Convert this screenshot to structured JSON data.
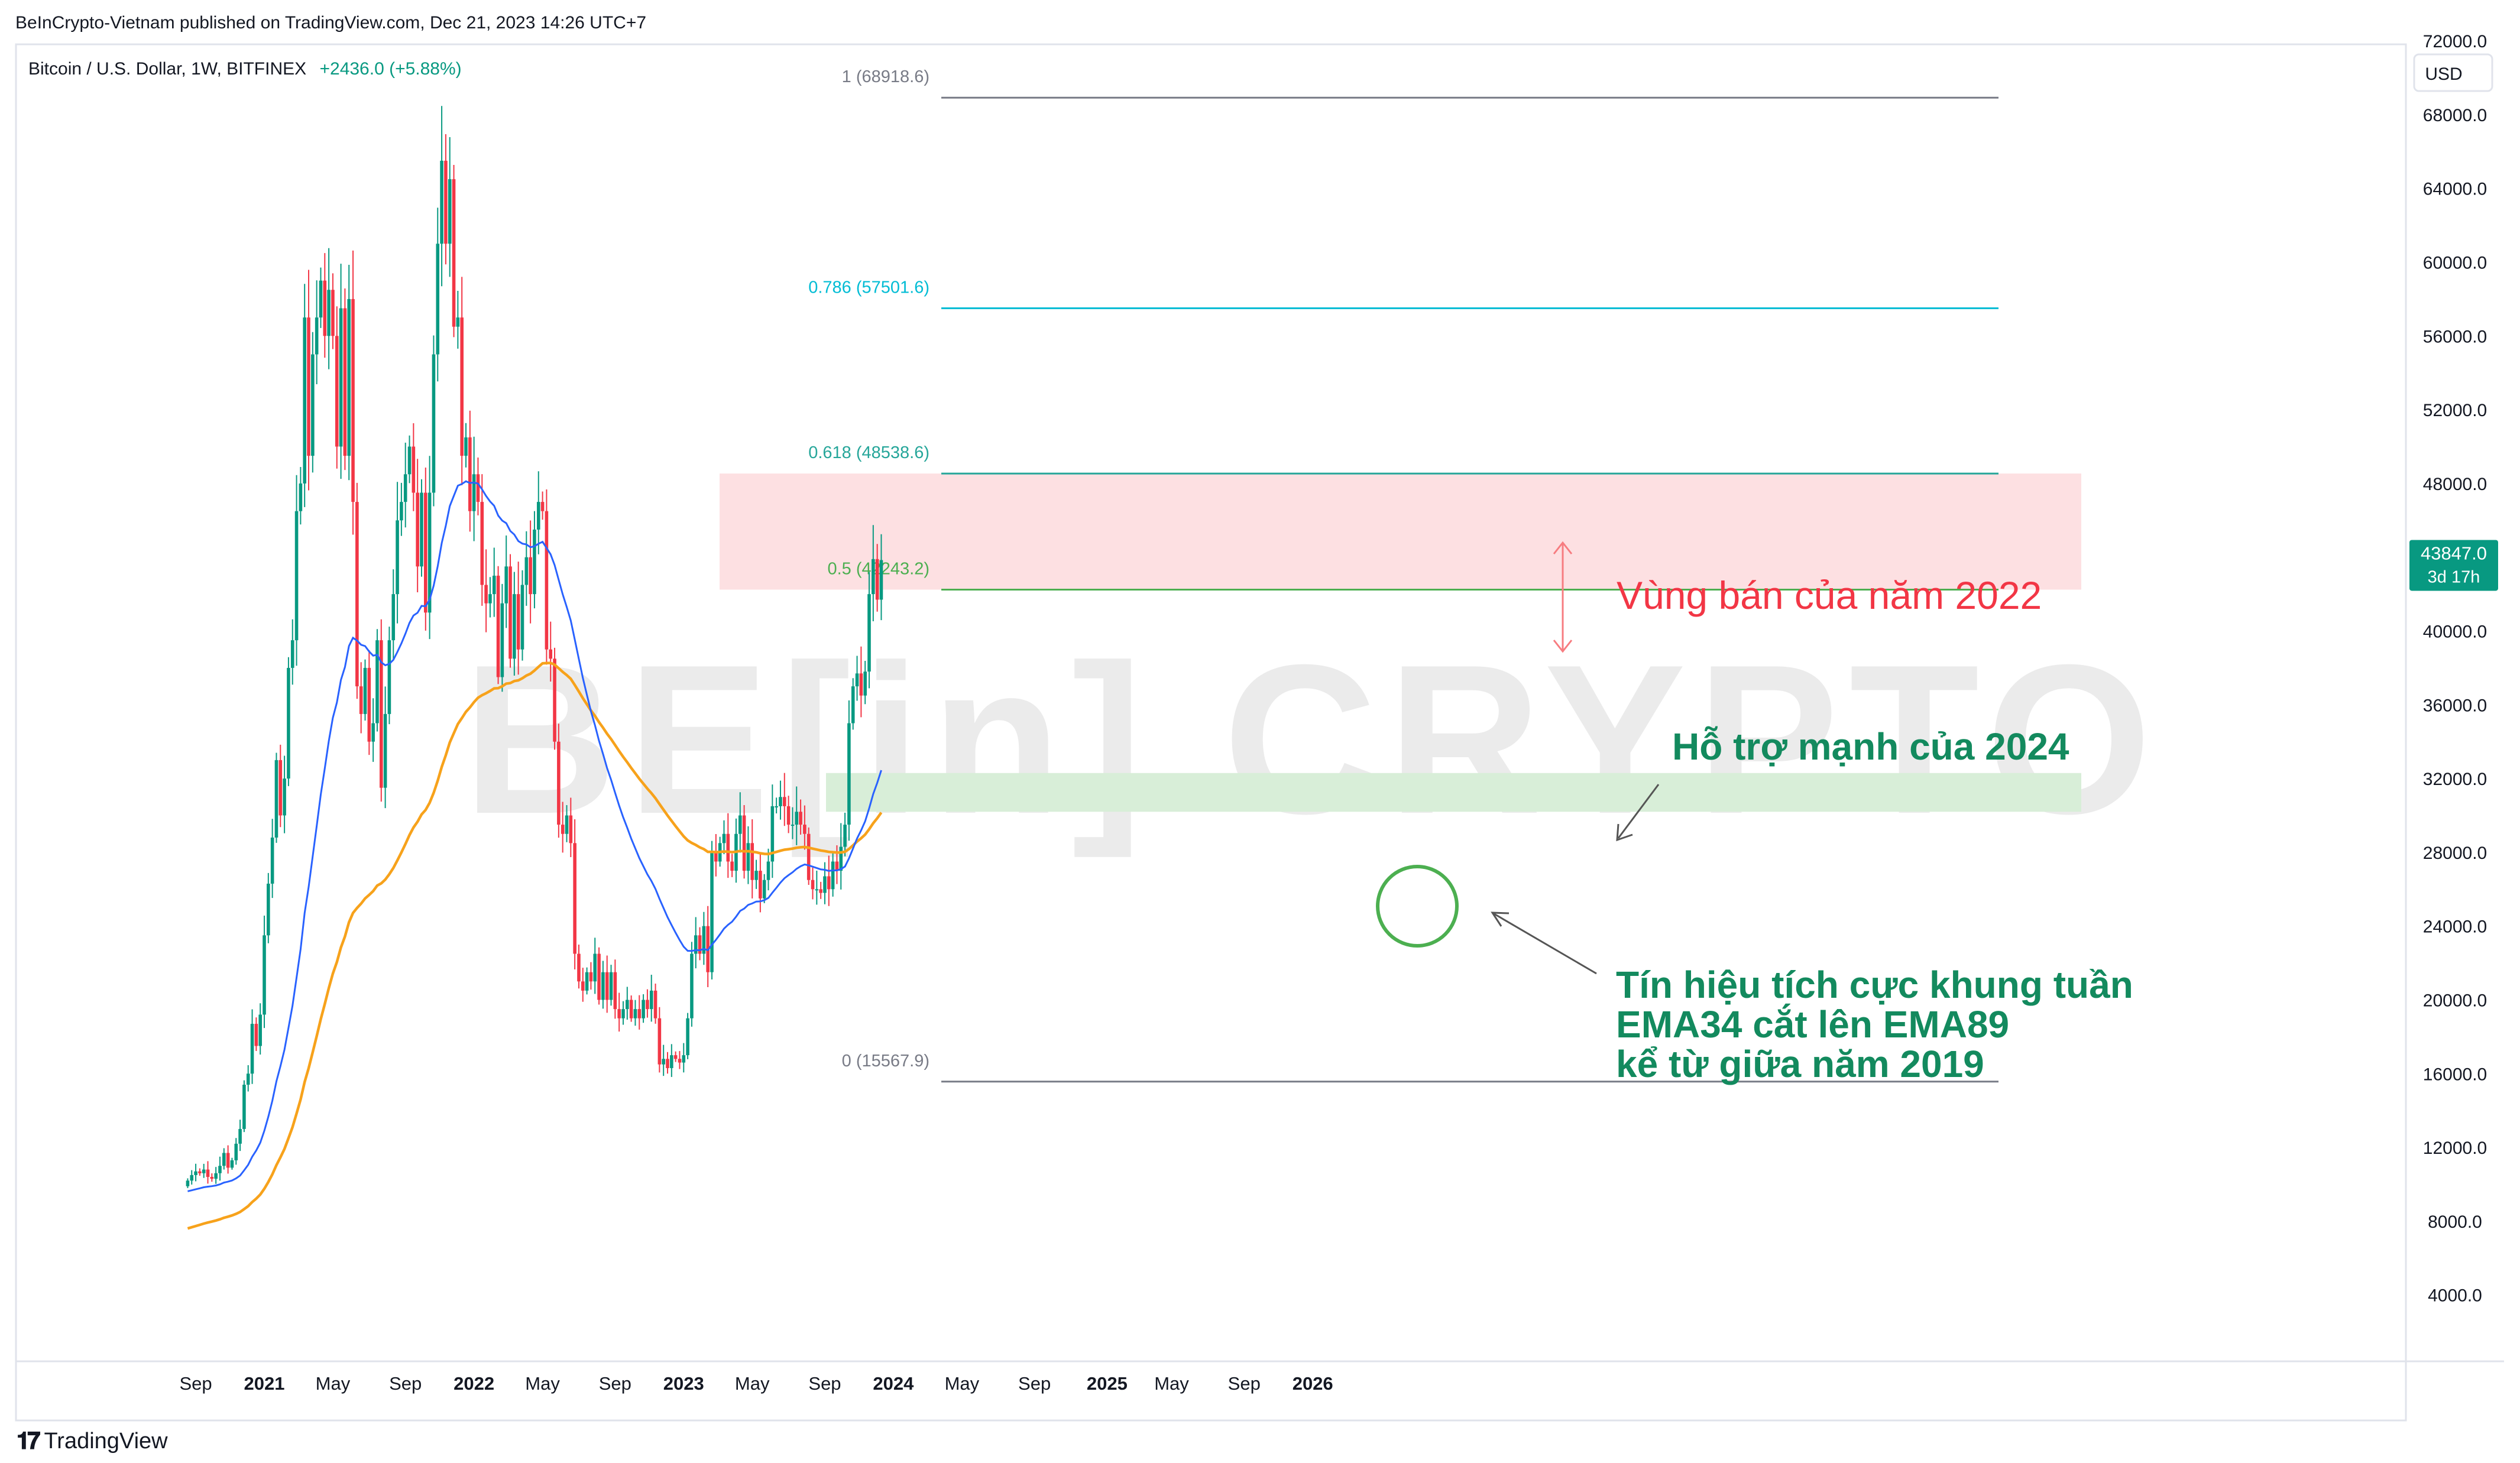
{
  "header": {
    "publisher_line": "BeInCrypto-Vietnam published on TradingView.com, Dec 21, 2023 14:26 UTC+7",
    "symbol_line": "Bitcoin / U.S. Dollar, 1W, BITFINEX",
    "change_text": "+2436.0 (+5.88%)"
  },
  "currency_label": "USD",
  "price_badge": {
    "price": "43847.0",
    "countdown": "3d 17h"
  },
  "watermark": "BE[in] CRYPTO",
  "footer": {
    "brand": "TradingView"
  },
  "colors": {
    "up": "#089981",
    "down": "#f23645",
    "ema34": "#2962ff",
    "ema89": "#f7a21b",
    "fib_gray": "#787b86",
    "fib_786": "#00bcd4",
    "fib_618": "#26a69a",
    "fib_05": "#4caf50",
    "sell_zone": "#fde0e2",
    "support_zone": "#d8eed8",
    "annot_red": "#f23645",
    "annot_green": "#138a5e"
  },
  "chart_data": {
    "type": "candlestick",
    "timeframe": "1W",
    "symbol": "BTCUSD",
    "y_axis": {
      "ylim": [
        2000,
        76000
      ],
      "ticks": [
        4000,
        8000,
        12000,
        16000,
        20000,
        24000,
        28000,
        32000,
        36000,
        40000,
        44000,
        48000,
        52000,
        56000,
        60000,
        64000,
        68000,
        72000
      ]
    },
    "x_axis": {
      "ticks": [
        {
          "label": "Sep",
          "week": 2
        },
        {
          "label": "2021",
          "week": 19
        },
        {
          "label": "May",
          "week": 36
        },
        {
          "label": "Sep",
          "week": 54
        },
        {
          "label": "2022",
          "week": 71
        },
        {
          "label": "May",
          "week": 88
        },
        {
          "label": "Sep",
          "week": 106
        },
        {
          "label": "2023",
          "week": 123
        },
        {
          "label": "May",
          "week": 140
        },
        {
          "label": "Sep",
          "week": 158
        },
        {
          "label": "2024",
          "week": 175
        },
        {
          "label": "May",
          "week": 192
        },
        {
          "label": "Sep",
          "week": 210
        },
        {
          "label": "2025",
          "week": 228
        },
        {
          "label": "May",
          "week": 244
        },
        {
          "label": "Sep",
          "week": 262
        },
        {
          "label": "2026",
          "week": 279
        }
      ],
      "week_range": [
        -14,
        294
      ]
    },
    "closes": [
      10200,
      10500,
      10700,
      10600,
      10800,
      10400,
      10300,
      10600,
      11000,
      11700,
      10900,
      11300,
      12200,
      13000,
      15400,
      16000,
      18700,
      17500,
      19200,
      23500,
      26300,
      28800,
      33000,
      30000,
      32000,
      38000,
      39500,
      46500,
      48000,
      57000,
      49500,
      55000,
      57000,
      59000,
      56000,
      58500,
      56000,
      50000,
      57500,
      49500,
      58000,
      47000,
      37000,
      35500,
      38000,
      34000,
      35000,
      39500,
      31500,
      35500,
      39500,
      42000,
      46000,
      47000,
      48500,
      50000,
      47500,
      43500,
      47500,
      41000,
      47500,
      55000,
      61000,
      65500,
      61000,
      64500,
      56500,
      57000,
      49500,
      50500,
      46500,
      48500,
      47000,
      42500,
      41500,
      42000,
      43000,
      37500,
      41500,
      43500,
      38500,
      42000,
      39000,
      42500,
      44000,
      42000,
      45500,
      47000,
      46500,
      39000,
      38500,
      34000,
      29500,
      29000,
      30000,
      28500,
      22500,
      21000,
      20500,
      21500,
      21000,
      22500,
      20000,
      21500,
      20000,
      21500,
      19500,
      19000,
      19500,
      20000,
      19000,
      19500,
      19000,
      20000,
      19500,
      20500,
      19000,
      16500,
      16800,
      16300,
      17000,
      16800,
      16600,
      17000,
      19000,
      22500,
      23500,
      22500,
      24000,
      21500,
      28000,
      27500,
      28500,
      29000,
      27500,
      27000,
      29000,
      30000,
      27000,
      28500,
      26500,
      27000,
      25500,
      26500,
      27500,
      30500,
      30500,
      31000,
      30500,
      29500,
      29500,
      30200,
      29500,
      29000,
      26500,
      26000,
      26000,
      25800,
      26700,
      26000,
      27500,
      27000,
      28300,
      29500,
      35000,
      37000,
      37700,
      36500,
      37800,
      42000,
      43900,
      41700,
      43847
    ],
    "fibonacci": [
      {
        "level": "1",
        "price": 68918.6,
        "label": "1 (68918.6)"
      },
      {
        "level": "0.786",
        "price": 57501.6,
        "label": "0.786 (57501.6)"
      },
      {
        "level": "0.618",
        "price": 48538.6,
        "label": "0.618 (48538.6)"
      },
      {
        "level": "0.5",
        "price": 42243.2,
        "label": "0.5 (42243.2)"
      },
      {
        "level": "0",
        "price": 15567.9,
        "label": "0 (15567.9)"
      }
    ],
    "zones": [
      {
        "name": "sell-zone",
        "from": 42243,
        "to": 48540
      },
      {
        "name": "support-zone",
        "from": 30200,
        "to": 32300
      }
    ],
    "indicators": [
      "EMA34",
      "EMA89"
    ],
    "annotations": {
      "sell_zone": "Vùng bán của năm 2022",
      "support_zone": "Hỗ trợ mạnh của 2024",
      "signal": [
        "Tín hiệu tích cực khung tuần",
        "EMA34 cắt lên EMA89",
        "kể từ giữa năm 2019"
      ]
    }
  }
}
